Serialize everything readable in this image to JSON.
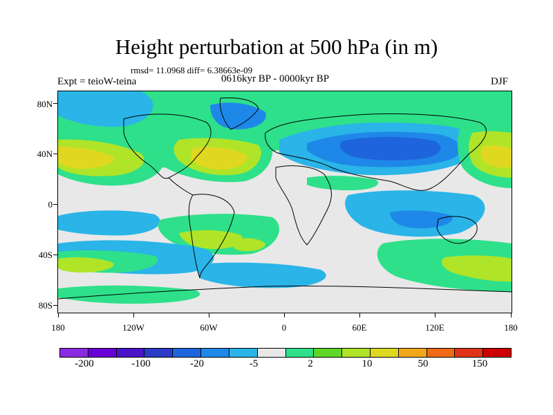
{
  "figure": {
    "title": "Height perturbation at 500 hPa (in m)",
    "stats": "rmsd= 11.0968 diff= 6.38663e-09",
    "experiment": "Expt = teioW-teina",
    "period": "0616kyr BP - 0000kyr BP",
    "season": "DJF"
  },
  "map": {
    "type": "filled-contour-map",
    "projection": "cylindrical-equidistant",
    "lon_range": [
      -180,
      180
    ],
    "lat_range": [
      -90,
      90
    ],
    "lat_ticks": [
      "80N",
      "40N",
      "0",
      "40S",
      "80S"
    ],
    "lon_ticks": [
      "180",
      "120W",
      "60W",
      "0",
      "60E",
      "120E",
      "180"
    ],
    "features": [
      {
        "name": "NE Pacific high",
        "sign": "positive",
        "level_m": 50
      },
      {
        "name": "North Atlantic high",
        "sign": "positive",
        "level_m": 50
      },
      {
        "name": "Central Asia low",
        "sign": "negative",
        "level_m": -100
      },
      {
        "name": "Arctic low",
        "sign": "negative",
        "level_m": -20
      },
      {
        "name": "NW Pacific high",
        "sign": "positive",
        "level_m": 50
      },
      {
        "name": "Southern ocean high belt",
        "sign": "positive",
        "level_m": 10
      },
      {
        "name": "Indian ocean low",
        "sign": "negative",
        "level_m": -5
      }
    ]
  },
  "colorbar": {
    "colors": [
      "#8a2be2",
      "#6a00d8",
      "#4a14c8",
      "#2a3cc8",
      "#1e64dc",
      "#1e88e8",
      "#2ab4e8",
      "#e8e8e8",
      "#2ee08a",
      "#5fd628",
      "#b0e428",
      "#e0d820",
      "#f0a818",
      "#f06a18",
      "#e03418",
      "#cc0000"
    ],
    "labels": [
      "-200",
      "-100",
      "-20",
      "-5",
      "2",
      "10",
      "50",
      "150"
    ]
  }
}
